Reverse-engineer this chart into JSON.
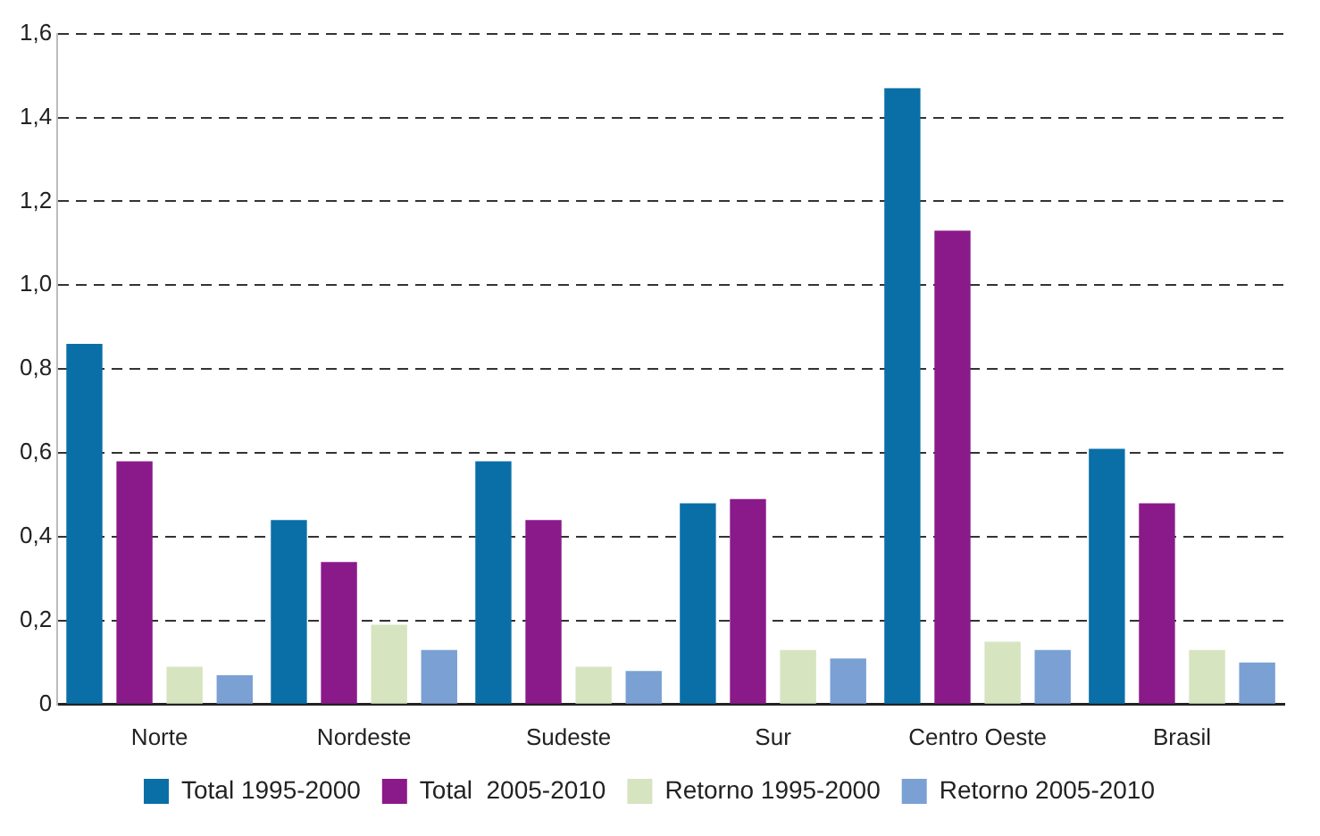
{
  "chart_data": {
    "type": "bar",
    "categories": [
      "Norte",
      "Nordeste",
      "Sudeste",
      "Sur",
      "Centro Oeste",
      "Brasil"
    ],
    "series": [
      {
        "name": "Total 1995-2000",
        "color": "#0a6fa6",
        "values": [
          0.86,
          0.44,
          0.58,
          0.48,
          1.47,
          0.61
        ]
      },
      {
        "name": "Total  2005-2010",
        "color": "#8a1a8a",
        "values": [
          0.58,
          0.34,
          0.44,
          0.49,
          1.13,
          0.48
        ]
      },
      {
        "name": "Retorno 1995-2000",
        "color": "#d6e4c0",
        "values": [
          0.09,
          0.19,
          0.09,
          0.13,
          0.15,
          0.13
        ]
      },
      {
        "name": "Retorno 2005-2010",
        "color": "#7aa0d4",
        "values": [
          0.07,
          0.13,
          0.08,
          0.11,
          0.13,
          0.1
        ]
      }
    ],
    "ylim": [
      0,
      1.6
    ],
    "yticks": [
      {
        "value": 0,
        "label": "0"
      },
      {
        "value": 0.2,
        "label": "0,2"
      },
      {
        "value": 0.4,
        "label": "0,4"
      },
      {
        "value": 0.6,
        "label": "0,6"
      },
      {
        "value": 0.8,
        "label": "0,8"
      },
      {
        "value": 1.0,
        "label": "1,0"
      },
      {
        "value": 1.2,
        "label": "1,2"
      },
      {
        "value": 1.4,
        "label": "1,4"
      },
      {
        "value": 1.6,
        "label": "1,6"
      }
    ],
    "grid": "y",
    "legend": "bottom"
  }
}
